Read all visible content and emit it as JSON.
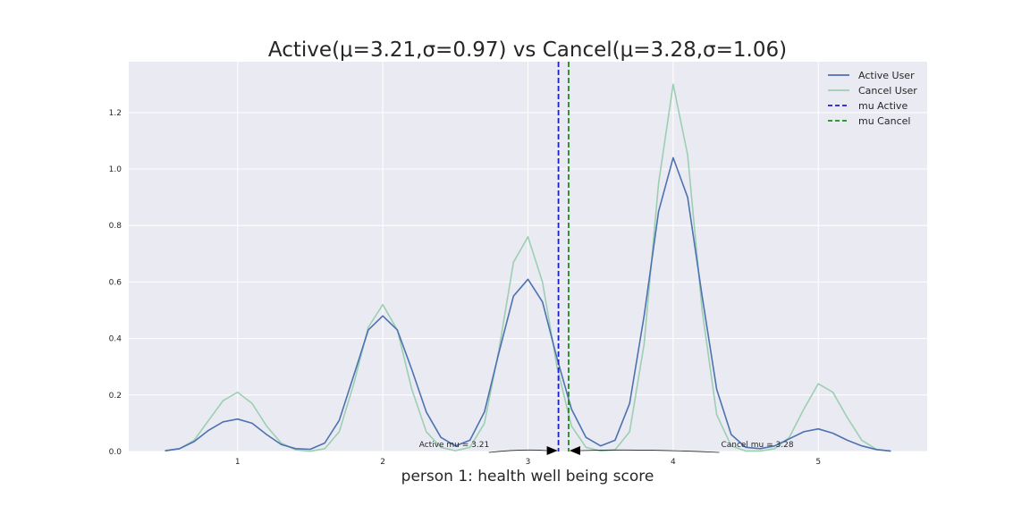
{
  "chart_data": {
    "type": "line",
    "title": "Active(μ=3.21,σ=0.97) vs Cancel(μ=3.28,σ=1.06)",
    "xlabel": "person 1: health well being score",
    "ylabel": "",
    "xlim": [
      0.25,
      5.75
    ],
    "ylim": [
      0,
      1.38
    ],
    "xticks": [
      1,
      2,
      3,
      4,
      5
    ],
    "yticks": [
      0.0,
      0.2,
      0.4,
      0.6,
      0.8,
      1.0,
      1.2
    ],
    "ytick_labels": [
      "0.0",
      "0.2",
      "0.4",
      "0.6",
      "0.8",
      "1.0",
      "1.2"
    ],
    "grid": true,
    "legend_position": "top-right",
    "x": [
      0.5,
      0.6,
      0.7,
      0.8,
      0.9,
      1.0,
      1.1,
      1.2,
      1.3,
      1.4,
      1.5,
      1.6,
      1.7,
      1.8,
      1.9,
      2.0,
      2.1,
      2.2,
      2.3,
      2.4,
      2.5,
      2.6,
      2.7,
      2.8,
      2.9,
      3.0,
      3.1,
      3.2,
      3.3,
      3.4,
      3.5,
      3.6,
      3.7,
      3.8,
      3.9,
      4.0,
      4.1,
      4.2,
      4.3,
      4.4,
      4.5,
      4.6,
      4.7,
      4.8,
      4.9,
      5.0,
      5.1,
      5.2,
      5.3,
      5.4,
      5.5
    ],
    "series": [
      {
        "name": "Active User",
        "color": "#4c72b0",
        "values": [
          0.003,
          0.01,
          0.035,
          0.075,
          0.105,
          0.115,
          0.1,
          0.06,
          0.025,
          0.01,
          0.008,
          0.03,
          0.11,
          0.27,
          0.43,
          0.48,
          0.43,
          0.29,
          0.14,
          0.05,
          0.02,
          0.04,
          0.14,
          0.35,
          0.55,
          0.61,
          0.53,
          0.33,
          0.15,
          0.05,
          0.02,
          0.04,
          0.17,
          0.48,
          0.85,
          1.04,
          0.9,
          0.55,
          0.22,
          0.06,
          0.015,
          0.01,
          0.02,
          0.045,
          0.07,
          0.08,
          0.065,
          0.04,
          0.02,
          0.007,
          0.002
        ]
      },
      {
        "name": "Cancel User",
        "color": "#9ccfb2",
        "values": [
          0.002,
          0.01,
          0.04,
          0.11,
          0.18,
          0.21,
          0.17,
          0.09,
          0.03,
          0.006,
          0.001,
          0.01,
          0.07,
          0.24,
          0.44,
          0.52,
          0.43,
          0.22,
          0.07,
          0.015,
          0.003,
          0.015,
          0.1,
          0.36,
          0.67,
          0.76,
          0.6,
          0.3,
          0.09,
          0.015,
          0.002,
          0.006,
          0.07,
          0.38,
          0.95,
          1.3,
          1.05,
          0.5,
          0.13,
          0.02,
          0.002,
          0.002,
          0.01,
          0.05,
          0.15,
          0.24,
          0.21,
          0.12,
          0.04,
          0.008,
          0.001
        ]
      }
    ],
    "vlines": [
      {
        "name": "mu Active",
        "x": 3.21,
        "color": "#1f1fc9"
      },
      {
        "name": "mu Cancel",
        "x": 3.28,
        "color": "#1f8a1f"
      }
    ],
    "annotations": [
      {
        "text": "Active mu = 3.21",
        "x": 3.21,
        "text_x": 2.25,
        "text_y": 0.01
      },
      {
        "text": "Cancel mu = 3.28",
        "x": 3.28,
        "text_x": 4.33,
        "text_y": 0.01
      }
    ]
  }
}
